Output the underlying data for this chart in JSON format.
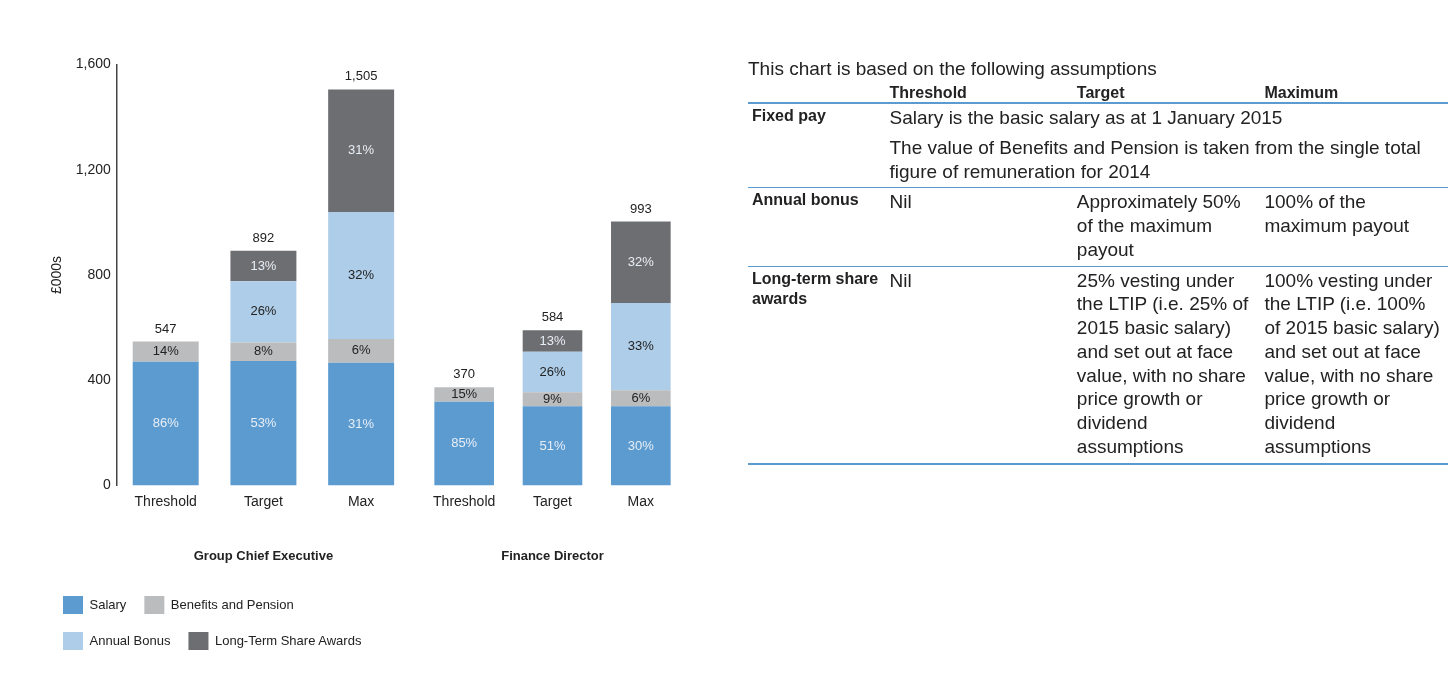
{
  "chart_data": [
    {
      "type": "bar",
      "stacked": true,
      "ylabel": "£000s",
      "xlabel": "Group Chief Executive",
      "categories": [
        "Threshold",
        "Target",
        "Max"
      ],
      "series": [
        {
          "name": "Salary",
          "color": "#5b9bd0",
          "values": [
            470,
            473,
            467
          ]
        },
        {
          "name": "Benefits and Pension",
          "color": "#bbbcbe",
          "values": [
            77,
            71,
            90
          ]
        },
        {
          "name": "Annual Bonus",
          "color": "#aecde8",
          "values": [
            null,
            232,
            482
          ]
        },
        {
          "name": "Long-Term Share Awards",
          "color": "#6d6e71",
          "values": [
            null,
            116,
            466
          ]
        }
      ],
      "totals": [
        "547",
        "892",
        "1,505"
      ],
      "ylim": [
        0,
        1600
      ],
      "yticks": [
        0,
        400,
        800,
        {
          "value": 1200,
          "label": "1,200"
        },
        {
          "value": 1600,
          "label": "1,600"
        }
      ],
      "annotations": [
        "86%",
        "14%",
        "53%",
        "8%",
        "26%",
        "13%",
        "31%",
        "6%",
        "32%",
        "31%"
      ],
      "grid": false,
      "legend": "bottom"
    },
    {
      "type": "bar",
      "stacked": true,
      "xlabel": "Finance Director",
      "categories": [
        "Threshold",
        "Target",
        "Max"
      ],
      "series": [
        {
          "color": "#5b9bd0",
          "values": [
            315,
            298,
            298
          ]
        },
        {
          "color": "#bbbcbe",
          "values": [
            55,
            53,
            60
          ]
        },
        {
          "color": "#aecde8",
          "values": [
            null,
            152,
            328
          ]
        },
        {
          "color": "#6d6e71",
          "values": [
            null,
            81,
            307
          ]
        }
      ],
      "totals": [
        "370",
        "584",
        "993"
      ],
      "ylim": [
        0,
        1600
      ],
      "tick_labels": "x",
      "annotations": [
        "85%",
        "15%",
        "51%",
        "9%",
        "26%",
        "13%",
        "30%",
        "6%",
        "33%",
        "32%"
      ],
      "grid": false
    },
    {
      "type": "other",
      "title": "This chart is based on the following assumptions",
      "annotations": [
        "Threshold",
        "Target",
        "Maximum",
        "Fixed pay",
        "Salary is the basic salary as at 1 January 2015",
        "The value of Benefits and Pension is taken from the single total figure of remuneration for 2014",
        "Annual bonus",
        "Nil",
        "Approximately 50% of the maximum payout",
        "100% of the maximum payout",
        "Long-term share awards",
        "Nil",
        "25% vesting under the LTIP (i.e. 25% of 2015 basic salary) and set out at face value, with no share price growth or dividend assumptions",
        "100% vesting under the LTIP (i.e. 100% of 2015 basic salary) and set out at face value, with no share price growth or dividend assumptions"
      ]
    }
  ]
}
